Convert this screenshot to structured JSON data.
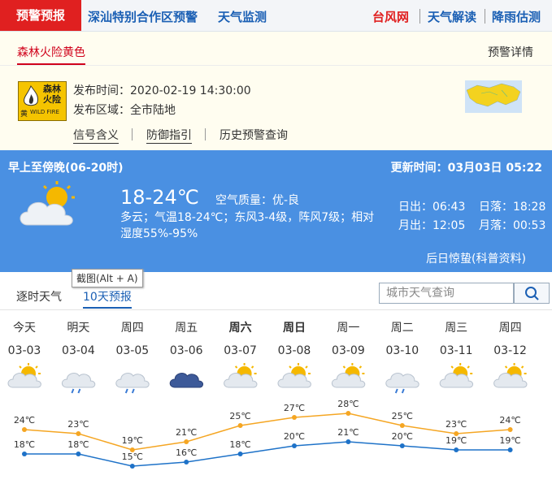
{
  "nav": {
    "active": "预警预报",
    "left": [
      "深汕特别合作区预警",
      "天气监测"
    ],
    "right": [
      "台风网",
      "天气解读",
      "降雨估测"
    ]
  },
  "alert": {
    "tab": "森林火险黄色",
    "detail": "预警详情",
    "icon": {
      "line1": "森林",
      "line2": "火险",
      "level": "黄",
      "en": "WILD FIRE"
    },
    "time": "发布时间：2020-02-19 14:30:00",
    "area": "发布区域：全市陆地",
    "links": [
      "信号含义",
      "防御指引",
      "历史预警查询"
    ]
  },
  "today": {
    "period": "早上至傍晚(06-20时)",
    "updated": "更新时间：03月03日 05:22",
    "temp": "18-24℃",
    "air": "空气质量：优-良",
    "desc": "多云；气温18-24℃；东风3-4级，阵风7级；相对湿度55%-95%",
    "sunrise": "日出：06:43",
    "sunset": "日落：18:28",
    "moonrise": "月出：12:05",
    "moonset": "月落：00:53",
    "note": "后日惊蛰(科普资料)"
  },
  "tooltip": "截图(Alt + A)",
  "tabs": [
    "逐时天气",
    "10天预报"
  ],
  "search": "城市天气查询",
  "forecast": {
    "days": [
      "今天",
      "明天",
      "周四",
      "周五",
      "周六",
      "周日",
      "周一",
      "周二",
      "周三",
      "周四"
    ],
    "dates": [
      "03-03",
      "03-04",
      "03-05",
      "03-06",
      "03-07",
      "03-08",
      "03-09",
      "03-10",
      "03-11",
      "03-12"
    ],
    "high": {
      "color": "#f5a623",
      "values": [
        24,
        23,
        19,
        21,
        25,
        27,
        28,
        25,
        23,
        24
      ],
      "value_labels": [
        "24℃",
        "23℃",
        "19℃",
        "21℃",
        "25℃",
        "27℃",
        "28℃",
        "25℃",
        "23℃",
        "24℃"
      ]
    },
    "low": {
      "color": "#1e72c8",
      "values": [
        18,
        18,
        15,
        16,
        18,
        20,
        21,
        20,
        19,
        19
      ],
      "value_labels": [
        "18℃",
        "18℃",
        "15℃",
        "16℃",
        "18℃",
        "20℃",
        "21℃",
        "20℃",
        "19℃",
        "19℃"
      ]
    }
  }
}
